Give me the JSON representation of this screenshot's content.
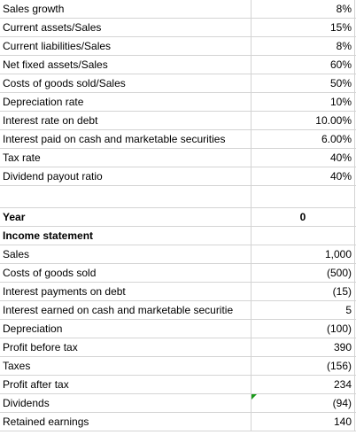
{
  "assumptions": [
    {
      "label": "Sales growth",
      "value": "8%"
    },
    {
      "label": "Current assets/Sales",
      "value": "15%"
    },
    {
      "label": "Current liabilities/Sales",
      "value": "8%"
    },
    {
      "label": "Net fixed assets/Sales",
      "value": "60%"
    },
    {
      "label": "Costs of goods sold/Sales",
      "value": "50%"
    },
    {
      "label": "Depreciation rate",
      "value": "10%"
    },
    {
      "label": "Interest rate on debt",
      "value": "10.00%"
    },
    {
      "label": "Interest paid on cash and marketable securities",
      "value": "6.00%"
    },
    {
      "label": "Tax rate",
      "value": "40%"
    },
    {
      "label": "Dividend payout ratio",
      "value": "40%"
    }
  ],
  "year_header": {
    "label": "Year",
    "value": "0"
  },
  "income_statement_header": "Income statement",
  "income_statement": [
    {
      "label": "Sales",
      "value": "1,000"
    },
    {
      "label": "Costs of goods sold",
      "value": "(500)"
    },
    {
      "label": "Interest payments on debt",
      "value": "(15)"
    },
    {
      "label": "Interest earned on cash and marketable securitie",
      "value": "5"
    },
    {
      "label": "Depreciation",
      "value": "(100)"
    },
    {
      "label": "Profit before tax",
      "value": "390"
    },
    {
      "label": "Taxes",
      "value": "(156)"
    },
    {
      "label": "Profit after tax",
      "value": "234"
    },
    {
      "label": "Dividends",
      "value": "(94)"
    },
    {
      "label": "Retained earnings",
      "value": "140"
    }
  ],
  "colors": {
    "gridline": "#d4d4d4",
    "comment_marker": "#1a9a1a"
  }
}
